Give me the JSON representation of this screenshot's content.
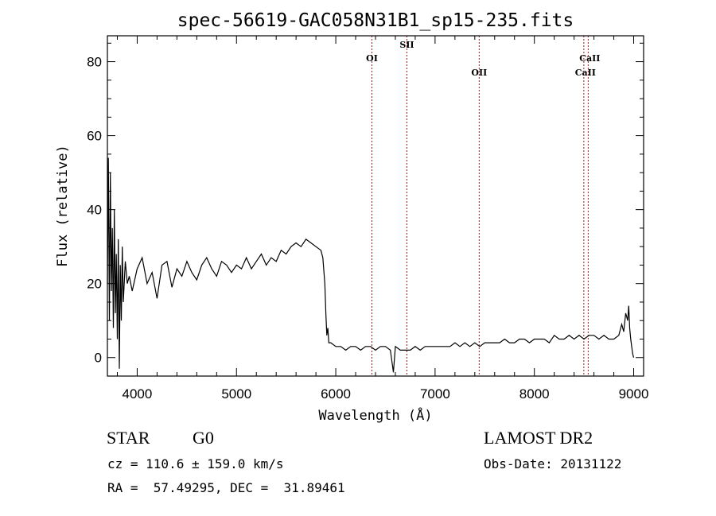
{
  "colors": {
    "spectrum": "#000000",
    "line_marker": "#a01818",
    "axes": "#000000",
    "background": "#ffffff"
  },
  "chart_data": {
    "type": "line",
    "title": "spec-56619-GAC058N31B1_sp15-235.fits",
    "xlabel": "Wavelength (Å)",
    "ylabel": "Flux (relative)",
    "xlim": [
      3700,
      9100
    ],
    "ylim": [
      -5,
      87
    ],
    "xticks": [
      4000,
      5000,
      6000,
      7000,
      8000,
      9000
    ],
    "yticks": [
      0,
      20,
      40,
      60,
      80
    ],
    "grid": false,
    "series": [
      {
        "x": [
          3700,
          3710,
          3720,
          3730,
          3740,
          3750,
          3760,
          3770,
          3780,
          3790,
          3800,
          3810,
          3820,
          3830,
          3840,
          3850,
          3860,
          3880,
          3900,
          3920,
          3950,
          4000,
          4050,
          4100,
          4150,
          4200,
          4250,
          4300,
          4350,
          4400,
          4450,
          4500,
          4550,
          4600,
          4650,
          4700,
          4750,
          4800,
          4850,
          4900,
          4950,
          5000,
          5050,
          5100,
          5150,
          5200,
          5250,
          5300,
          5350,
          5400,
          5450,
          5500,
          5550,
          5600,
          5650,
          5700,
          5750,
          5800,
          5850,
          5870,
          5890,
          5900,
          5910,
          5920,
          5930,
          5950,
          6000,
          6050,
          6100,
          6150,
          6200,
          6250,
          6300,
          6350,
          6400,
          6450,
          6500,
          6550,
          6580,
          6600,
          6650,
          6700,
          6750,
          6800,
          6850,
          6900,
          6950,
          7000,
          7050,
          7100,
          7150,
          7200,
          7250,
          7300,
          7350,
          7400,
          7450,
          7500,
          7550,
          7600,
          7650,
          7700,
          7750,
          7800,
          7850,
          7900,
          7950,
          8000,
          8050,
          8100,
          8150,
          8200,
          8250,
          8300,
          8350,
          8400,
          8450,
          8500,
          8550,
          8600,
          8650,
          8700,
          8750,
          8800,
          8850,
          8880,
          8900,
          8920,
          8940,
          8950,
          8960,
          8970,
          8980,
          8990,
          9000
        ],
        "y": [
          20,
          54,
          10,
          50,
          18,
          35,
          8,
          40,
          12,
          28,
          5,
          32,
          -3,
          25,
          10,
          30,
          15,
          26,
          20,
          22,
          18,
          24,
          27,
          20,
          23,
          16,
          25,
          26,
          19,
          24,
          22,
          26,
          23,
          21,
          25,
          27,
          24,
          22,
          26,
          25,
          23,
          25,
          24,
          27,
          24,
          26,
          28,
          25,
          27,
          26,
          29,
          28,
          30,
          31,
          30,
          32,
          31,
          30,
          29,
          27,
          20,
          12,
          6,
          8,
          4,
          4,
          3,
          3,
          2,
          3,
          3,
          2,
          3,
          3,
          2,
          3,
          3,
          2,
          -4,
          3,
          2,
          2,
          2,
          3,
          2,
          3,
          3,
          3,
          3,
          3,
          3,
          4,
          3,
          4,
          3,
          4,
          3,
          4,
          4,
          4,
          4,
          5,
          4,
          4,
          5,
          5,
          4,
          5,
          5,
          5,
          4,
          6,
          5,
          5,
          6,
          5,
          6,
          5,
          6,
          6,
          5,
          6,
          5,
          5,
          6,
          9,
          7,
          12,
          10,
          14,
          8,
          5,
          3,
          1,
          0
        ]
      }
    ],
    "spectral_lines": [
      {
        "label": "OI",
        "x": 6364
      },
      {
        "label": "SII",
        "x": 6716
      },
      {
        "label": "OII",
        "x": 7444
      },
      {
        "label": "CaII",
        "x": 8498
      },
      {
        "label": "CaII",
        "x": 8542
      }
    ]
  },
  "info": {
    "object_class": "STAR",
    "subclass": "G0",
    "survey": "LAMOST DR2",
    "redshift_line": "cz = 110.6 ± 159.0 km/s",
    "obs_date_line": "Obs-Date: 20131122",
    "coords_line": "RA =  57.49295, DEC =  31.89461"
  }
}
